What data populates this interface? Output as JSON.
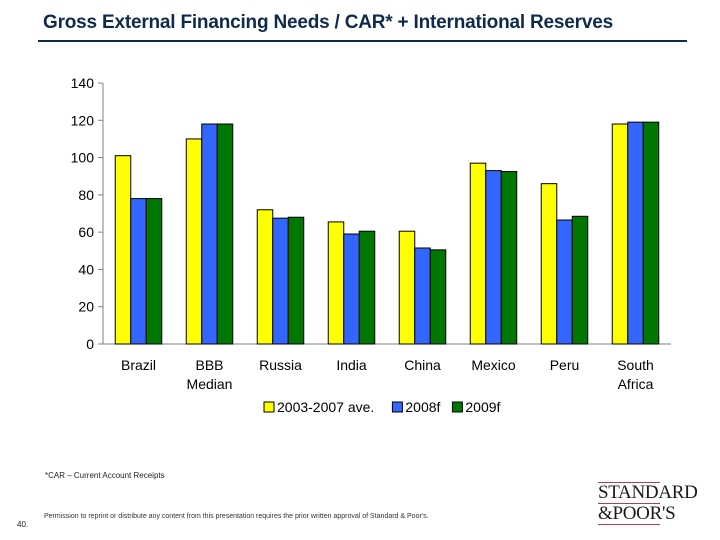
{
  "header": {
    "title": "Gross External Financing Needs / CAR* + International Reserves"
  },
  "chart_data": {
    "type": "bar",
    "title": "Gross External Financing Needs / CAR* + International Reserves",
    "xlabel": "",
    "ylabel": "",
    "ylim": [
      0,
      140
    ],
    "yticks": [
      0,
      20,
      40,
      60,
      80,
      100,
      120,
      140
    ],
    "grid": false,
    "legend_position": "bottom",
    "categories": [
      [
        "Brazil"
      ],
      [
        "BBB",
        "Median"
      ],
      [
        "Russia"
      ],
      [
        "India"
      ],
      [
        "China"
      ],
      [
        "Mexico"
      ],
      [
        "Peru"
      ],
      [
        "South",
        "Africa"
      ]
    ],
    "series": [
      {
        "name": "2003-2007 ave.",
        "color": "#ffff00",
        "values": [
          101,
          110,
          72,
          65.5,
          60.5,
          97,
          86,
          118
        ]
      },
      {
        "name": "2008f",
        "color": "#3366ff",
        "values": [
          78,
          118,
          67.5,
          59,
          51.5,
          93,
          66.5,
          119
        ]
      },
      {
        "name": "2009f",
        "color": "#007700",
        "values": [
          78,
          118,
          68,
          60.5,
          50.5,
          92.5,
          68.5,
          119
        ]
      }
    ]
  },
  "footer": {
    "footnote": "*CAR – Current Account Receipts",
    "permission": "Permission to reprint or distribute any content from this presentation requires the prior written approval of Standard & Poor's.",
    "page_number": "40.",
    "logo_line1": "STANDARD",
    "logo_line2": "&POOR'S"
  }
}
